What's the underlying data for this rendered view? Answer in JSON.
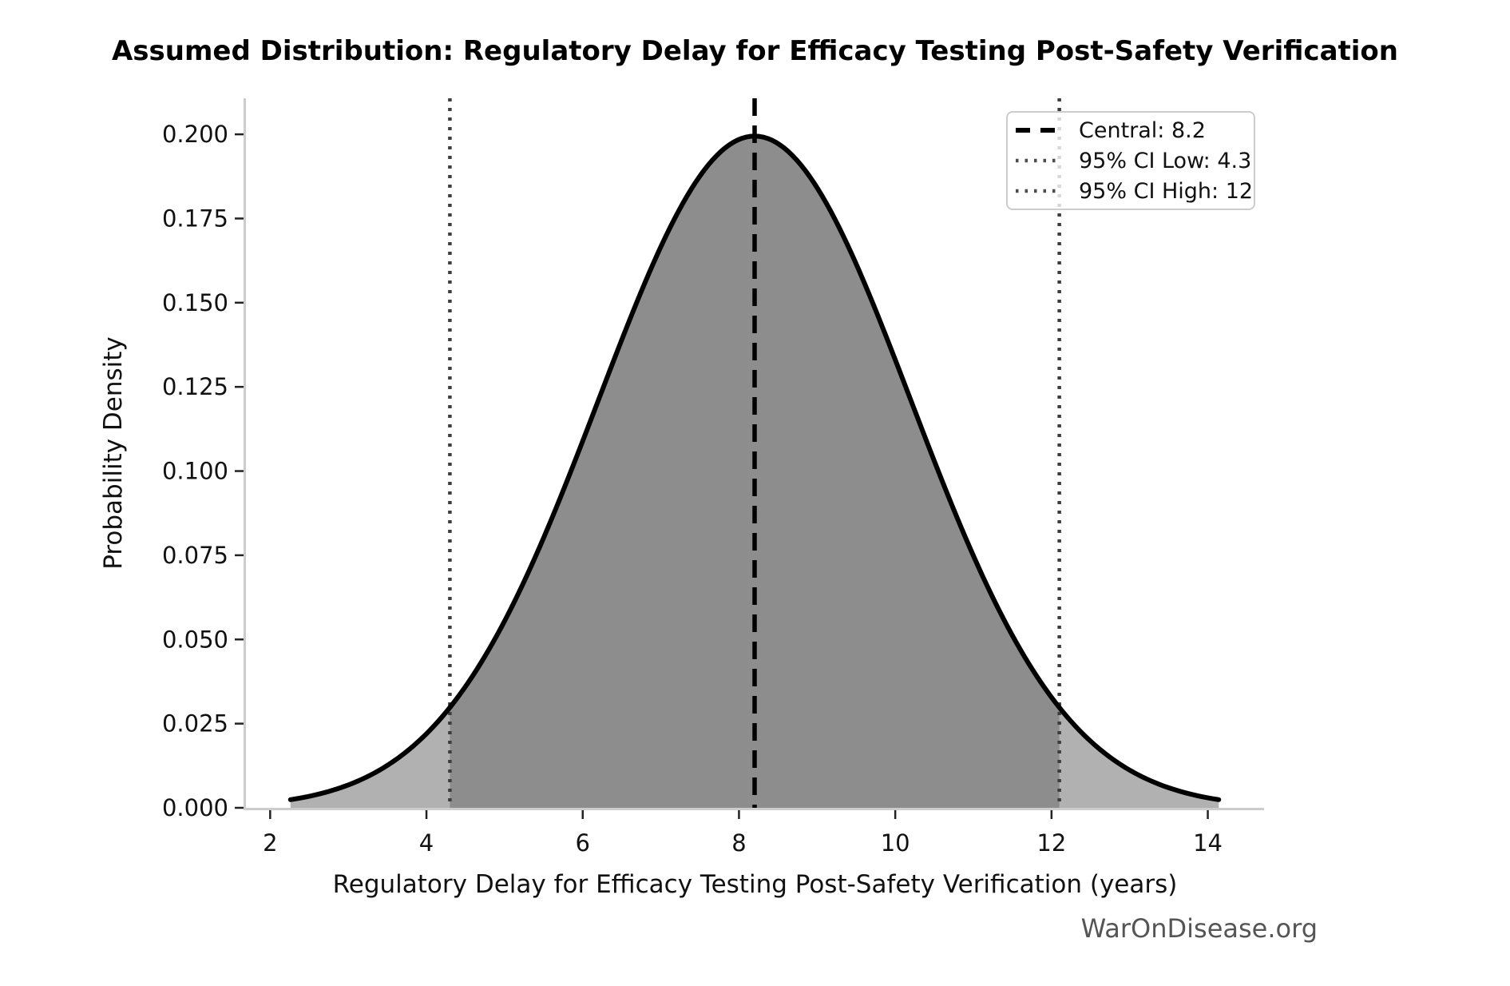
{
  "title": "Assumed Distribution: Regulatory Delay for Efficacy Testing Post-Safety Verification",
  "watermark": "WarOnDisease.org",
  "axes": {
    "xlabel": "Regulatory Delay for Efficacy Testing Post-Safety Verification (years)",
    "ylabel": "Probability Density",
    "x_tick_values": [
      2,
      4,
      6,
      8,
      10,
      12,
      14
    ],
    "x_tick_labels": [
      "2",
      "4",
      "6",
      "8",
      "10",
      "12",
      "14"
    ],
    "y_tick_values": [
      0,
      0.025,
      0.05,
      0.075,
      0.1,
      0.125,
      0.15,
      0.175,
      0.2
    ],
    "y_tick_labels": [
      "0.000",
      "0.025",
      "0.050",
      "0.075",
      "0.100",
      "0.125",
      "0.150",
      "0.175",
      "0.200"
    ]
  },
  "legend": {
    "items": [
      {
        "label": "Central: 8.2",
        "line_style": "dashed"
      },
      {
        "label": "95% CI Low: 4.3",
        "line_style": "dotted"
      },
      {
        "label": "95% CI High: 12",
        "line_style": "dotted"
      }
    ]
  },
  "chart_data": {
    "type": "area",
    "title": "Assumed Distribution: Regulatory Delay for Efficacy Testing Post-Safety Verification",
    "xlabel": "Regulatory Delay for Efficacy Testing Post-Safety Verification (years)",
    "ylabel": "Probability Density",
    "distribution": "normal",
    "mean": 8.2,
    "sd": 2.0,
    "peak_density": 0.199,
    "central": 8.2,
    "ci_low": 4.3,
    "ci_high": 12.1,
    "ci_high_label_value": 12,
    "curve_x_range": [
      2.26,
      14.14
    ],
    "xlim": [
      1.69,
      14.72
    ],
    "ylim": [
      0,
      0.2107
    ],
    "grid": false,
    "legend_position": "upper right",
    "sampled_points": {
      "x": [
        2.26,
        3,
        4,
        5,
        6,
        7,
        8,
        8.2,
        9,
        10,
        11,
        12,
        13,
        14,
        14.14
      ],
      "pdf": [
        0.0024,
        0.0068,
        0.022,
        0.0554,
        0.1089,
        0.1666,
        0.1985,
        0.1995,
        0.1841,
        0.133,
        0.0749,
        0.0328,
        0.0112,
        0.003,
        0.0024
      ]
    }
  },
  "colors": {
    "fill_light": "#b1b1b1",
    "fill_dark": "#8d8d8d",
    "curve": "#000000",
    "central_line": "#000000",
    "ci_line": "#3d3d3d",
    "legend_ci_line": "#4d4d4d",
    "spine": "#cccccc",
    "tick": "#222222",
    "tick_label": "#111111",
    "watermark": "#555555"
  }
}
